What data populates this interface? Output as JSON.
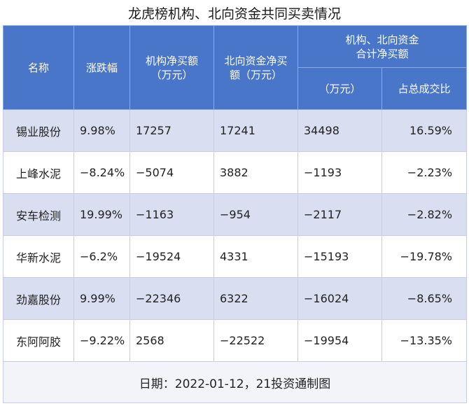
{
  "title": "龙虎榜机构、北向资金共同买卖情况",
  "headers": {
    "name": "名称",
    "change": "涨跌幅",
    "inst_line1": "机构净买额",
    "inst_line2": "（万元）",
    "north_line1": "北向资金净买",
    "north_line2": "额（万元）",
    "combined_line1": "机构、北向资金",
    "combined_line2": "合计净买额",
    "combined_unit": "（万元）",
    "share": "占总成交比"
  },
  "rows": [
    {
      "name": "锡业股份",
      "change": "9.98%",
      "inst": "17257",
      "north": "17241",
      "combined": "34498",
      "share": "16.59%"
    },
    {
      "name": "上峰水泥",
      "change": "−8.24%",
      "inst": "−5074",
      "north": "3882",
      "combined": "−1193",
      "share": "−2.23%"
    },
    {
      "name": "安车检测",
      "change": "19.99%",
      "inst": "−1163",
      "north": "−954",
      "combined": "−2117",
      "share": "−2.82%"
    },
    {
      "name": "华新水泥",
      "change": "−6.2%",
      "inst": "−19524",
      "north": "4331",
      "combined": "−15193",
      "share": "−19.78%"
    },
    {
      "name": "劲嘉股份",
      "change": "9.99%",
      "inst": "−22346",
      "north": "6322",
      "combined": "−16024",
      "share": "−8.65%"
    },
    {
      "name": "东阿阿胶",
      "change": "−9.22%",
      "inst": "2568",
      "north": "−22522",
      "combined": "−19954",
      "share": "−13.35%"
    }
  ],
  "footer": "日期：2022-01-12，21投资通制图",
  "colors": {
    "header_bg": "#4a76c9",
    "row_alt_bg": "#d9def0"
  }
}
